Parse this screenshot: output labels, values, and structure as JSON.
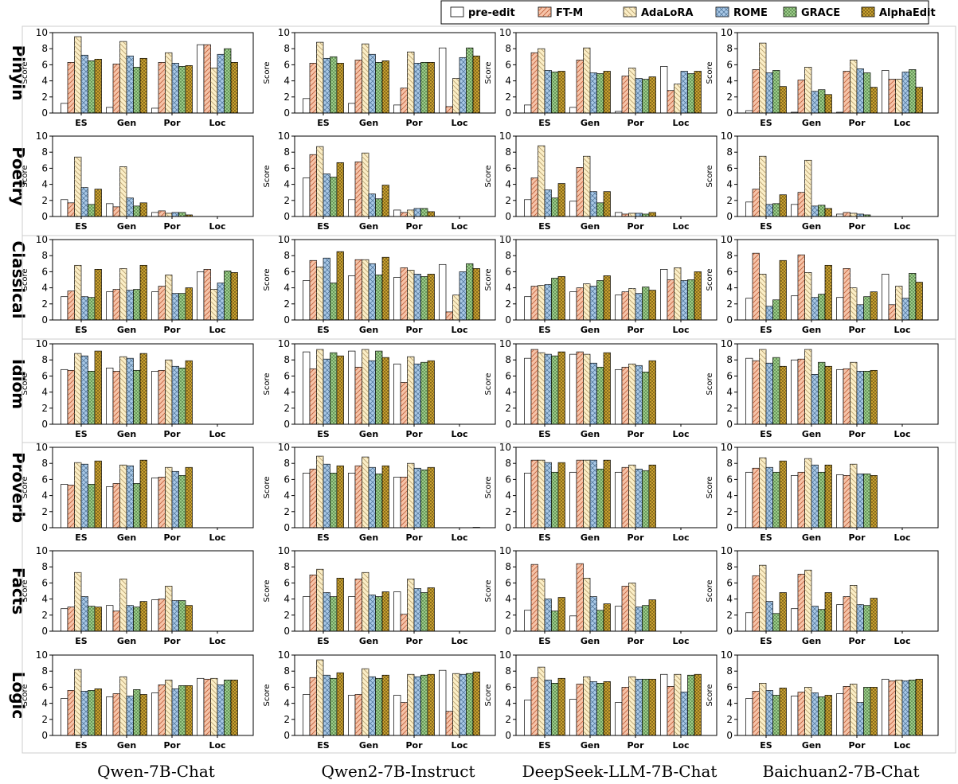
{
  "chart_data": {
    "type": "bar",
    "categories": [
      "ES",
      "Gen",
      "Por",
      "Loc"
    ],
    "ylabel": "Score",
    "ylim": [
      0,
      10
    ],
    "yticks": [
      "0",
      "2",
      "4",
      "6",
      "8",
      "10"
    ],
    "models": [
      "Qwen-7B-Chat",
      "Qwen2-7B-Instruct",
      "DeepSeek-LLM-7B-Chat",
      "Baichuan2-7B-Chat"
    ],
    "datasets": [
      "Pinyin",
      "Poetry",
      "Classical",
      "Idiom",
      "Proverb",
      "Facts",
      "Logic"
    ],
    "methods": [
      {
        "name": "pre-edit",
        "color": "#ffffff",
        "pattern": "none"
      },
      {
        "name": "FT-M",
        "color": "#f6c3a8",
        "pattern": "diag-right"
      },
      {
        "name": "AdaLoRA",
        "color": "#fbeec6",
        "pattern": "diag-left"
      },
      {
        "name": "ROME",
        "color": "#a9c8e6",
        "pattern": "cross"
      },
      {
        "name": "GRACE",
        "color": "#9ccc8a",
        "pattern": "dots"
      },
      {
        "name": "AlphaEdit",
        "color": "#c8a030",
        "pattern": "dots"
      }
    ],
    "grid": false,
    "legend_position": "top-right",
    "data": {
      "Pinyin": [
        [
          [
            1.2,
            6.3,
            9.5,
            7.2,
            6.5,
            6.7
          ],
          [
            0.7,
            6.1,
            8.9,
            7.1,
            5.7,
            6.8
          ],
          [
            0.6,
            6.3,
            7.5,
            6.2,
            5.8,
            5.9
          ],
          [
            8.5,
            8.5,
            5.6,
            7.3,
            8.0,
            6.3
          ]
        ],
        [
          [
            1.8,
            6.2,
            8.8,
            6.8,
            7.0,
            6.2
          ],
          [
            1.2,
            6.6,
            8.6,
            7.3,
            6.3,
            6.5
          ],
          [
            1.0,
            3.1,
            7.6,
            6.2,
            6.3,
            6.3
          ],
          [
            8.1,
            0.8,
            4.3,
            6.9,
            8.1,
            7.1
          ]
        ],
        [
          [
            1.0,
            7.5,
            8.0,
            5.3,
            5.1,
            5.2
          ],
          [
            0.7,
            6.6,
            8.1,
            5.0,
            4.9,
            5.2
          ],
          [
            0.2,
            4.6,
            5.6,
            4.3,
            4.2,
            4.5
          ],
          [
            5.8,
            2.8,
            3.6,
            5.2,
            4.9,
            5.2
          ]
        ],
        [
          [
            0.3,
            5.4,
            8.7,
            5.0,
            5.3,
            3.3
          ],
          [
            0.1,
            4.1,
            5.7,
            2.7,
            2.9,
            2.3
          ],
          [
            0.1,
            5.2,
            6.6,
            5.5,
            5.0,
            3.2
          ],
          [
            5.3,
            4.2,
            4.2,
            5.1,
            5.4,
            3.2
          ]
        ]
      ],
      "Poetry": [
        [
          [
            2.1,
            1.7,
            7.4,
            3.6,
            1.5,
            3.4
          ],
          [
            1.6,
            1.2,
            6.2,
            2.3,
            1.3,
            1.7
          ],
          [
            0.5,
            0.7,
            0.4,
            0.5,
            0.5,
            0.2
          ],
          [
            0,
            0,
            0,
            0,
            0,
            0
          ]
        ],
        [
          [
            4.8,
            7.7,
            8.7,
            5.3,
            4.9,
            6.7
          ],
          [
            2.1,
            6.8,
            7.9,
            2.8,
            2.2,
            3.9
          ],
          [
            0.8,
            0.5,
            0.8,
            1.0,
            1.0,
            0.6
          ],
          [
            0,
            0,
            0,
            0,
            0,
            0
          ]
        ],
        [
          [
            2.1,
            4.8,
            8.8,
            3.3,
            2.3,
            4.1
          ],
          [
            1.9,
            6.1,
            7.5,
            3.1,
            1.7,
            3.1
          ],
          [
            0.5,
            0.3,
            0.4,
            0.4,
            0.3,
            0.5
          ],
          [
            0,
            0,
            0,
            0,
            0,
            0
          ]
        ],
        [
          [
            1.8,
            3.4,
            7.5,
            1.5,
            1.6,
            2.7
          ],
          [
            1.5,
            3.0,
            7.0,
            1.3,
            1.4,
            1.0
          ],
          [
            0.3,
            0.5,
            0.4,
            0.3,
            0.2,
            0
          ],
          [
            0,
            0,
            0,
            0,
            0,
            0
          ]
        ]
      ],
      "Classical": [
        [
          [
            2.9,
            3.6,
            6.8,
            2.9,
            2.8,
            6.3
          ],
          [
            3.5,
            3.8,
            6.4,
            3.7,
            3.8,
            6.8
          ],
          [
            3.5,
            4.2,
            5.6,
            3.3,
            3.3,
            4.0
          ],
          [
            6.0,
            6.3,
            3.8,
            4.6,
            6.1,
            5.9
          ]
        ],
        [
          [
            4.9,
            7.4,
            6.6,
            7.7,
            4.6,
            8.5
          ],
          [
            5.5,
            7.5,
            7.5,
            7.0,
            5.6,
            7.8
          ],
          [
            5.3,
            6.5,
            6.2,
            5.7,
            5.4,
            5.7
          ],
          [
            6.9,
            1.0,
            3.1,
            6.0,
            7.0,
            6.4
          ]
        ],
        [
          [
            2.9,
            4.2,
            4.3,
            4.4,
            5.2,
            5.4
          ],
          [
            3.5,
            4.0,
            4.5,
            4.2,
            4.9,
            5.5
          ],
          [
            3.1,
            3.5,
            3.9,
            3.3,
            4.1,
            3.7
          ],
          [
            6.3,
            5.0,
            6.5,
            4.9,
            5.0,
            6.0
          ]
        ],
        [
          [
            2.7,
            8.3,
            5.7,
            1.7,
            2.5,
            7.4
          ],
          [
            3.0,
            8.1,
            5.9,
            2.8,
            3.2,
            6.8
          ],
          [
            2.8,
            6.4,
            4.0,
            1.9,
            2.9,
            3.5
          ],
          [
            5.7,
            1.9,
            4.2,
            2.7,
            5.8,
            4.7
          ]
        ]
      ],
      "Idiom": [
        [
          [
            6.8,
            6.7,
            8.8,
            8.5,
            6.6,
            9.1
          ],
          [
            7.0,
            6.6,
            8.4,
            8.2,
            6.7,
            8.8
          ],
          [
            6.6,
            6.7,
            8.0,
            7.2,
            7.0,
            7.9
          ],
          [
            0,
            0,
            0,
            0,
            0,
            0
          ]
        ],
        [
          [
            9.0,
            6.9,
            9.3,
            8.1,
            8.9,
            8.5
          ],
          [
            9.1,
            7.1,
            9.3,
            7.9,
            9.1,
            8.3
          ],
          [
            7.5,
            5.2,
            8.4,
            7.5,
            7.7,
            7.9
          ],
          [
            0,
            0,
            0,
            0,
            0,
            0
          ]
        ],
        [
          [
            8.2,
            9.3,
            8.9,
            8.7,
            8.5,
            9.0
          ],
          [
            8.7,
            9.0,
            8.7,
            7.6,
            7.1,
            8.9
          ],
          [
            6.8,
            7.1,
            7.5,
            7.3,
            6.5,
            7.9
          ],
          [
            0,
            0,
            0,
            0,
            0,
            0
          ]
        ],
        [
          [
            8.2,
            7.9,
            9.3,
            7.6,
            8.3,
            7.2
          ],
          [
            8.0,
            8.1,
            9.3,
            6.2,
            7.7,
            7.2
          ],
          [
            6.8,
            6.9,
            7.7,
            6.6,
            6.6,
            6.7
          ],
          [
            0,
            0,
            0,
            0,
            0,
            0
          ]
        ]
      ],
      "Proverb": [
        [
          [
            5.4,
            5.3,
            8.1,
            7.9,
            5.4,
            8.3
          ],
          [
            5.1,
            5.5,
            7.8,
            7.7,
            5.5,
            8.4
          ],
          [
            6.2,
            6.3,
            7.5,
            7.0,
            6.5,
            7.5
          ],
          [
            0,
            0,
            0,
            0,
            0,
            0
          ]
        ],
        [
          [
            6.8,
            7.3,
            8.9,
            7.9,
            6.8,
            7.7
          ],
          [
            6.8,
            7.7,
            8.8,
            7.5,
            6.7,
            7.7
          ],
          [
            6.3,
            6.3,
            8.0,
            7.4,
            7.2,
            7.5
          ],
          [
            0,
            0,
            0,
            0,
            0,
            0.05
          ]
        ],
        [
          [
            6.8,
            8.4,
            8.4,
            8.1,
            6.9,
            8.1
          ],
          [
            6.9,
            8.4,
            8.4,
            8.4,
            7.3,
            8.4
          ],
          [
            6.9,
            7.5,
            7.8,
            7.3,
            7.1,
            7.8
          ],
          [
            0,
            0,
            0,
            0,
            0,
            0
          ]
        ],
        [
          [
            6.9,
            7.4,
            8.7,
            7.5,
            6.9,
            8.3
          ],
          [
            6.5,
            6.9,
            8.6,
            7.8,
            6.9,
            7.8
          ],
          [
            6.6,
            6.5,
            7.9,
            6.7,
            6.7,
            6.5
          ],
          [
            0,
            0,
            0,
            0,
            0,
            0
          ]
        ]
      ],
      "Facts": [
        [
          [
            2.8,
            3.0,
            7.3,
            4.3,
            3.1,
            3.0
          ],
          [
            3.2,
            2.5,
            6.5,
            3.2,
            3.0,
            3.7
          ],
          [
            3.9,
            4.0,
            5.6,
            3.8,
            3.8,
            3.2
          ],
          [
            0,
            0,
            0,
            0,
            0,
            0
          ]
        ],
        [
          [
            4.3,
            7.0,
            7.7,
            4.8,
            4.3,
            6.6
          ],
          [
            4.3,
            6.5,
            7.3,
            4.5,
            4.3,
            4.9
          ],
          [
            4.9,
            2.1,
            6.5,
            5.3,
            4.8,
            5.4
          ],
          [
            0,
            0,
            0,
            0,
            0,
            0
          ]
        ],
        [
          [
            2.6,
            8.3,
            6.5,
            4.0,
            2.5,
            4.2
          ],
          [
            1.9,
            8.4,
            6.6,
            4.3,
            2.6,
            3.4
          ],
          [
            3.1,
            5.6,
            6.0,
            3.0,
            3.2,
            3.9
          ],
          [
            0,
            0,
            0,
            0,
            0,
            0
          ]
        ],
        [
          [
            2.3,
            6.9,
            8.2,
            3.7,
            2.2,
            4.8
          ],
          [
            2.8,
            7.1,
            7.6,
            3.1,
            2.7,
            4.8
          ],
          [
            3.3,
            4.3,
            5.7,
            3.3,
            3.2,
            4.1
          ],
          [
            0,
            0,
            0,
            0,
            0,
            0
          ]
        ]
      ],
      "Logic": [
        [
          [
            4.6,
            5.6,
            8.2,
            5.5,
            5.6,
            5.8
          ],
          [
            4.8,
            5.2,
            7.3,
            4.9,
            5.7,
            5.1
          ],
          [
            5.3,
            6.3,
            6.9,
            5.8,
            6.2,
            6.2
          ],
          [
            7.1,
            7.0,
            7.1,
            6.3,
            6.9,
            6.9
          ]
        ],
        [
          [
            5.1,
            7.2,
            9.4,
            7.5,
            7.1,
            7.8
          ],
          [
            5.0,
            5.1,
            8.3,
            7.3,
            7.1,
            7.5
          ],
          [
            5.0,
            4.1,
            7.6,
            7.3,
            7.5,
            7.6
          ],
          [
            8.1,
            3.0,
            7.7,
            7.6,
            7.7,
            7.9
          ]
        ],
        [
          [
            4.4,
            7.2,
            8.5,
            6.9,
            6.5,
            7.1
          ],
          [
            4.5,
            6.4,
            7.3,
            6.7,
            6.5,
            6.7
          ],
          [
            4.1,
            6.0,
            7.3,
            7.0,
            7.0,
            7.0
          ],
          [
            7.6,
            6.1,
            7.6,
            5.4,
            7.5,
            7.6
          ]
        ],
        [
          [
            4.6,
            5.5,
            6.5,
            5.6,
            5.0,
            5.9
          ],
          [
            4.9,
            5.4,
            6.0,
            5.3,
            4.8,
            5.0
          ],
          [
            5.2,
            6.1,
            6.4,
            4.1,
            6.0,
            6.0
          ],
          [
            7.0,
            6.8,
            6.9,
            6.8,
            6.9,
            7.0
          ]
        ]
      ]
    }
  }
}
